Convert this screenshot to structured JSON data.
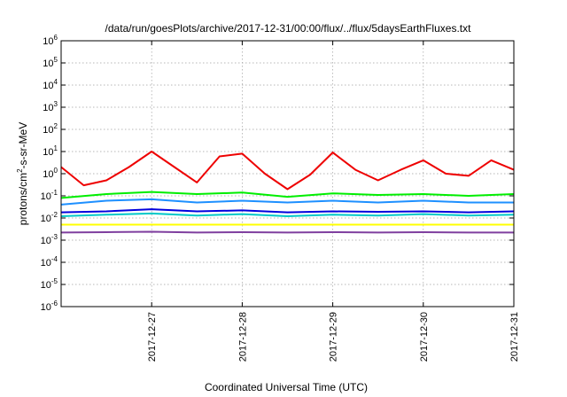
{
  "chart_data": {
    "type": "line",
    "title": "/data/run/goesPlots/archive/2017-12-31/00:00/flux/../flux/5daysEarthFluxes.txt",
    "xlabel": "Coordinated Universal Time (UTC)",
    "ylabel": {
      "base": "protons/cm",
      "sup": "2",
      "rest": "-s-sr-MeV"
    },
    "y_scale": "log",
    "ylim": [
      1e-06,
      1000000.0
    ],
    "y_ticks": [
      {
        "base": "10",
        "exp": "6",
        "value": 1000000.0
      },
      {
        "base": "10",
        "exp": "5",
        "value": 100000.0
      },
      {
        "base": "10",
        "exp": "4",
        "value": 10000.0
      },
      {
        "base": "10",
        "exp": "3",
        "value": 1000.0
      },
      {
        "base": "10",
        "exp": "2",
        "value": 100.0
      },
      {
        "base": "10",
        "exp": "1",
        "value": 10.0
      },
      {
        "base": "10",
        "exp": "0",
        "value": 1.0
      },
      {
        "base": "10",
        "exp": "-1",
        "value": 0.1
      },
      {
        "base": "10",
        "exp": "-2",
        "value": 0.01
      },
      {
        "base": "10",
        "exp": "-3",
        "value": 0.001
      },
      {
        "base": "10",
        "exp": "-4",
        "value": 0.0001
      },
      {
        "base": "10",
        "exp": "-5",
        "value": 1e-05
      },
      {
        "base": "10",
        "exp": "-6",
        "value": 1e-06
      }
    ],
    "xlim": [
      "2017-12-26T00:00",
      "2017-12-31T00:00"
    ],
    "x_ticks": [
      {
        "label": "2017-12-27",
        "value": "2017-12-27T00:00"
      },
      {
        "label": "2017-12-28",
        "value": "2017-12-28T00:00"
      },
      {
        "label": "2017-12-29",
        "value": "2017-12-29T00:00"
      },
      {
        "label": "2017-12-30",
        "value": "2017-12-30T00:00"
      },
      {
        "label": "2017-12-31",
        "value": "2017-12-31T00:00"
      }
    ],
    "grid": true,
    "series": [
      {
        "color": "#ee0000",
        "x": [
          "2017-12-26T00:00",
          "2017-12-26T06:00",
          "2017-12-26T12:00",
          "2017-12-26T18:00",
          "2017-12-27T00:00",
          "2017-12-27T06:00",
          "2017-12-27T12:00",
          "2017-12-27T18:00",
          "2017-12-28T00:00",
          "2017-12-28T06:00",
          "2017-12-28T12:00",
          "2017-12-28T18:00",
          "2017-12-29T00:00",
          "2017-12-29T06:00",
          "2017-12-29T12:00",
          "2017-12-29T18:00",
          "2017-12-30T00:00",
          "2017-12-30T06:00",
          "2017-12-30T12:00",
          "2017-12-30T18:00",
          "2017-12-31T00:00"
        ],
        "values": [
          2.0,
          0.3,
          0.5,
          2.0,
          10.0,
          2.0,
          0.4,
          6.0,
          8.0,
          1.0,
          0.2,
          0.9,
          9.0,
          1.5,
          0.5,
          1.5,
          4.0,
          1.0,
          0.8,
          4.0,
          1.5
        ]
      },
      {
        "color": "#00ee00",
        "x": [
          "2017-12-26T00:00",
          "2017-12-26T12:00",
          "2017-12-27T00:00",
          "2017-12-27T12:00",
          "2017-12-28T00:00",
          "2017-12-28T12:00",
          "2017-12-29T00:00",
          "2017-12-29T12:00",
          "2017-12-30T00:00",
          "2017-12-30T12:00",
          "2017-12-31T00:00"
        ],
        "values": [
          0.08,
          0.12,
          0.15,
          0.12,
          0.14,
          0.09,
          0.13,
          0.11,
          0.12,
          0.1,
          0.12
        ]
      },
      {
        "color": "#1e90ff",
        "x": [
          "2017-12-26T00:00",
          "2017-12-26T12:00",
          "2017-12-27T00:00",
          "2017-12-27T12:00",
          "2017-12-28T00:00",
          "2017-12-28T12:00",
          "2017-12-29T00:00",
          "2017-12-29T12:00",
          "2017-12-30T00:00",
          "2017-12-30T12:00",
          "2017-12-31T00:00"
        ],
        "values": [
          0.04,
          0.06,
          0.07,
          0.05,
          0.06,
          0.05,
          0.06,
          0.05,
          0.06,
          0.05,
          0.05
        ]
      },
      {
        "color": "#00c8c8",
        "x": [
          "2017-12-26T00:00",
          "2017-12-26T12:00",
          "2017-12-27T00:00",
          "2017-12-27T12:00",
          "2017-12-28T00:00",
          "2017-12-28T12:00",
          "2017-12-29T00:00",
          "2017-12-29T12:00",
          "2017-12-30T00:00",
          "2017-12-30T12:00",
          "2017-12-31T00:00"
        ],
        "values": [
          0.012,
          0.014,
          0.016,
          0.013,
          0.015,
          0.012,
          0.014,
          0.013,
          0.015,
          0.013,
          0.014
        ]
      },
      {
        "color": "#0000dd",
        "x": [
          "2017-12-26T00:00",
          "2017-12-26T12:00",
          "2017-12-27T00:00",
          "2017-12-27T12:00",
          "2017-12-28T00:00",
          "2017-12-28T12:00",
          "2017-12-29T00:00",
          "2017-12-29T12:00",
          "2017-12-30T00:00",
          "2017-12-30T12:00",
          "2017-12-31T00:00"
        ],
        "values": [
          0.018,
          0.02,
          0.025,
          0.02,
          0.022,
          0.018,
          0.02,
          0.019,
          0.02,
          0.018,
          0.02
        ]
      },
      {
        "color": "#ffff00",
        "x": [
          "2017-12-26T00:00",
          "2017-12-26T12:00",
          "2017-12-27T00:00",
          "2017-12-27T12:00",
          "2017-12-28T00:00",
          "2017-12-28T12:00",
          "2017-12-29T00:00",
          "2017-12-29T12:00",
          "2017-12-30T00:00",
          "2017-12-30T12:00",
          "2017-12-31T00:00"
        ],
        "values": [
          0.005,
          0.005,
          0.005,
          0.005,
          0.005,
          0.005,
          0.005,
          0.005,
          0.005,
          0.005,
          0.005
        ]
      },
      {
        "color": "#7f3f9f",
        "x": [
          "2017-12-26T00:00",
          "2017-12-26T12:00",
          "2017-12-27T00:00",
          "2017-12-27T12:00",
          "2017-12-28T00:00",
          "2017-12-28T12:00",
          "2017-12-29T00:00",
          "2017-12-29T12:00",
          "2017-12-30T00:00",
          "2017-12-30T12:00",
          "2017-12-31T00:00"
        ],
        "values": [
          0.0022,
          0.0023,
          0.0024,
          0.0022,
          0.0023,
          0.0022,
          0.0023,
          0.0022,
          0.0023,
          0.0022,
          0.0022
        ]
      }
    ]
  }
}
